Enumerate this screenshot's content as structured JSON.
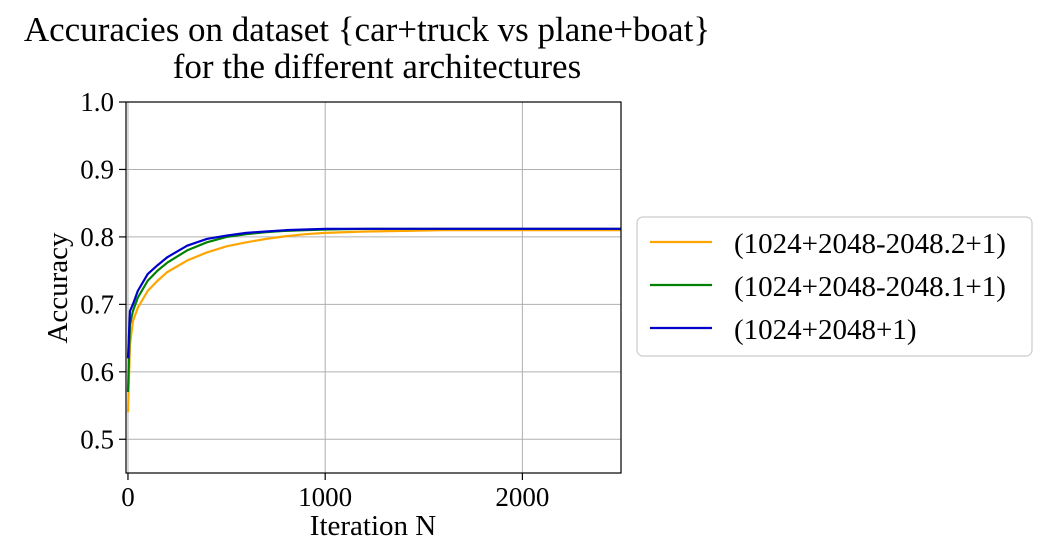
{
  "chart_data": {
    "type": "line",
    "title": [
      "Accuracies on dataset {car+truck vs plane+boat}",
      "for the different architectures"
    ],
    "xlabel": "Iteration N",
    "ylabel": "Accuracy",
    "xlim": [
      -10,
      2500
    ],
    "ylim": [
      0.45,
      1.0
    ],
    "xticks": [
      0,
      1000,
      2000
    ],
    "xtick_labels": [
      "0",
      "1000",
      "2000"
    ],
    "yticks": [
      0.5,
      0.6,
      0.7,
      0.8,
      0.9,
      1.0
    ],
    "ytick_labels": [
      "0.5",
      "0.6",
      "0.7",
      "0.8",
      "0.9",
      "1.0"
    ],
    "grid": true,
    "legend_position": "right-outside",
    "series": [
      {
        "name": "(1024+2048-2048.2+1)",
        "color": "#ffa500",
        "x": [
          0,
          10,
          25,
          50,
          100,
          150,
          200,
          300,
          400,
          500,
          600,
          700,
          800,
          900,
          1000,
          1200,
          1400,
          1600,
          1800,
          2000,
          2200,
          2400,
          2500
        ],
        "y": [
          0.54,
          0.64,
          0.675,
          0.695,
          0.72,
          0.735,
          0.748,
          0.765,
          0.777,
          0.786,
          0.792,
          0.797,
          0.801,
          0.804,
          0.806,
          0.808,
          0.809,
          0.81,
          0.81,
          0.81,
          0.81,
          0.81,
          0.81
        ]
      },
      {
        "name": "(1024+2048-2048.1+1)",
        "color": "#008000",
        "x": [
          0,
          10,
          25,
          50,
          100,
          150,
          200,
          300,
          400,
          500,
          600,
          700,
          800,
          900,
          1000,
          1200,
          1400,
          1600,
          1800,
          2000,
          2200,
          2400,
          2500
        ],
        "y": [
          0.57,
          0.67,
          0.69,
          0.71,
          0.735,
          0.75,
          0.762,
          0.78,
          0.792,
          0.8,
          0.804,
          0.807,
          0.809,
          0.81,
          0.811,
          0.812,
          0.812,
          0.812,
          0.812,
          0.812,
          0.812,
          0.812,
          0.812
        ]
      },
      {
        "name": "(1024+2048+1)",
        "color": "#0000cc",
        "x": [
          0,
          10,
          25,
          50,
          100,
          150,
          200,
          300,
          400,
          500,
          600,
          700,
          800,
          900,
          1000,
          1200,
          1400,
          1600,
          1800,
          2000,
          2200,
          2400,
          2500
        ],
        "y": [
          0.62,
          0.69,
          0.7,
          0.72,
          0.745,
          0.758,
          0.77,
          0.787,
          0.797,
          0.802,
          0.806,
          0.808,
          0.81,
          0.811,
          0.812,
          0.812,
          0.812,
          0.812,
          0.812,
          0.812,
          0.812,
          0.812,
          0.812
        ]
      }
    ]
  }
}
